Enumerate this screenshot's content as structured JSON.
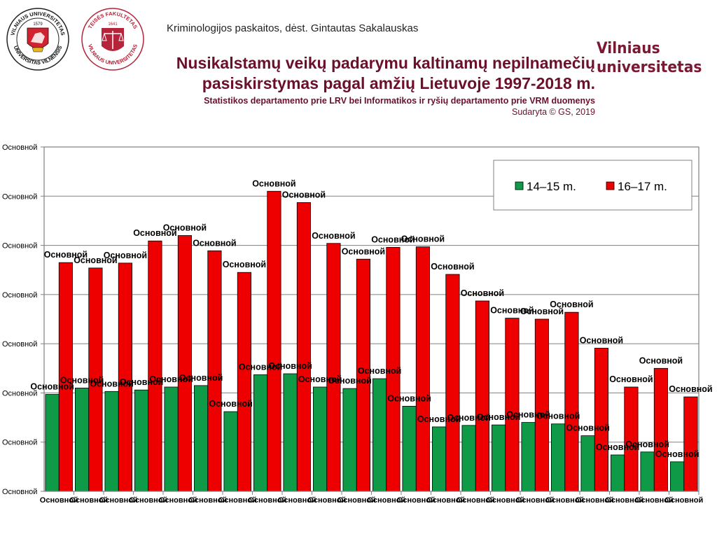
{
  "header": {
    "lecture": "Kriminologijos paskaitos, dėst. Gintautas Sakalauskas",
    "title_line1": "Nusikalstamų veikų padarymu kaltinamų nepilnamečių",
    "title_line2": "pasiskirstymas pagal amžių Lietuvoje 1997-2018 m.",
    "source": "Statistikos departamento prie LRV bei Informatikos ir ryšių departamento prie VRM duomenys",
    "credit": "Sudaryta © GS, 2019",
    "brand_line1": "Vilniaus",
    "brand_line2": "universitetas"
  },
  "logos": {
    "university_ring_top": "VILNIAUS UNIVERSITETAS",
    "university_ring_bottom": "UNIVERSITAS VILNENSIS",
    "university_year": "1579",
    "law_ring_top": "TEISĖS FAKULTETAS",
    "law_ring_bottom": "VILNIAUS UNIVERSITETAS",
    "law_year": "1641"
  },
  "colors": {
    "title": "#6b0f2a",
    "series_1415": "#0f9a47",
    "series_1617": "#ee0000",
    "plot_border": "#808080",
    "gridline": "#808080"
  },
  "chart_data": {
    "type": "bar",
    "categories": [
      "Основной",
      "Основной",
      "Основной",
      "Основной",
      "Основной",
      "Основной",
      "Основной",
      "Основной",
      "Основной",
      "Основной",
      "Основной",
      "Основной",
      "Основной",
      "Основной",
      "Основной",
      "Основной",
      "Основной",
      "Основной",
      "Основной",
      "Основной",
      "Основной",
      "Основной"
    ],
    "yticks": [
      "Основной",
      "Основной",
      "Основной",
      "Основной",
      "Основной",
      "Основной",
      "Основной",
      "Основной"
    ],
    "ylim": [
      0,
      7
    ],
    "series": [
      {
        "name": "14–15 m.",
        "values": [
          1.97,
          2.1,
          2.03,
          2.06,
          2.12,
          2.15,
          1.62,
          2.37,
          2.39,
          2.12,
          2.09,
          2.29,
          1.73,
          1.31,
          1.34,
          1.35,
          1.4,
          1.37,
          1.13,
          0.74,
          0.8,
          0.6
        ],
        "labels": [
          "Основной",
          "Основной",
          "Основной",
          "Основной",
          "Основной",
          "Основной",
          "Основной",
          "Основной",
          "Основной",
          "Основной",
          "Основной",
          "Основной",
          "Основной",
          "Основной",
          "Основной",
          "Основной",
          "Основной",
          "Основной",
          "Основной",
          "Основной",
          "Основной",
          "Основной"
        ]
      },
      {
        "name": "16–17 m.",
        "values": [
          4.65,
          4.54,
          4.64,
          5.09,
          5.2,
          4.89,
          4.45,
          6.1,
          5.87,
          5.04,
          4.72,
          4.96,
          4.97,
          4.41,
          3.87,
          3.52,
          3.5,
          3.64,
          2.91,
          2.12,
          2.5,
          1.92
        ],
        "labels": [
          "Основной",
          "Основной",
          "Основной",
          "Основной",
          "Основной",
          "Основной",
          "Основной",
          "Основной",
          "Основной",
          "Основной",
          "Основной",
          "Основной",
          "Основной",
          "Основной",
          "Основной",
          "Основной",
          "Основной",
          "Основной",
          "Основной",
          "Основной",
          "Основной",
          "Основной"
        ]
      }
    ],
    "grid": true,
    "legend": "top-right"
  }
}
